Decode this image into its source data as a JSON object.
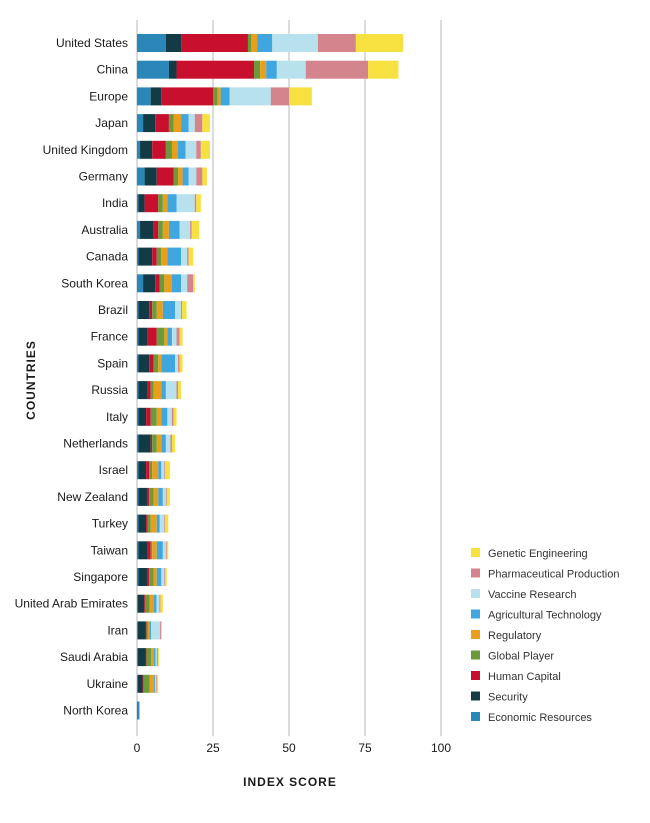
{
  "chart_data": {
    "type": "bar",
    "orientation": "horizontal",
    "stacked": true,
    "title": "",
    "xlabel": "INDEX SCORE",
    "ylabel": "COUNTRIES",
    "xlim": [
      0,
      100
    ],
    "xticks": [
      0,
      25,
      50,
      75,
      100
    ],
    "grid": "vertical",
    "legend": "bottom-right",
    "categories": [
      "United States",
      "China",
      "Europe",
      "Japan",
      "United Kingdom",
      "Germany",
      "India",
      "Australia",
      "Canada",
      "South Korea",
      "Brazil",
      "France",
      "Spain",
      "Russia",
      "Italy",
      "Netherlands",
      "Israel",
      "New Zealand",
      "Turkey",
      "Taiwan",
      "Singapore",
      "United Arab Emirates",
      "Iran",
      "Saudi Arabia",
      "Ukraine",
      "North Korea"
    ],
    "series": [
      {
        "name": "Economic Resources",
        "color": "#2b87b8",
        "values": [
          9.5,
          10.5,
          4.5,
          2.0,
          1.0,
          2.5,
          0.5,
          1.0,
          0.5,
          2.0,
          0.5,
          0.5,
          0.5,
          0.5,
          0.5,
          0.5,
          0.5,
          0.5,
          0.5,
          0.5,
          0.5,
          0.3,
          0.3,
          0.3,
          0.3,
          0.8
        ]
      },
      {
        "name": "Security",
        "color": "#133b45",
        "values": [
          5.0,
          2.5,
          3.5,
          4.0,
          4.0,
          4.0,
          2.0,
          4.5,
          4.5,
          4.0,
          3.5,
          3.0,
          3.5,
          3.0,
          2.5,
          4.0,
          2.5,
          3.0,
          2.5,
          3.0,
          3.0,
          2.0,
          2.5,
          2.5,
          1.5,
          0
        ]
      },
      {
        "name": "Human Capital",
        "color": "#c8102e",
        "values": [
          22.0,
          25.5,
          17.0,
          4.5,
          4.5,
          5.5,
          4.5,
          1.5,
          1.5,
          1.5,
          1.0,
          3.0,
          1.5,
          1.0,
          1.5,
          0.5,
          1.0,
          0.5,
          0.5,
          1.0,
          0.5,
          0.3,
          0.3,
          0.3,
          0.3,
          0
        ]
      },
      {
        "name": "Global Player",
        "color": "#6a9a3a",
        "values": [
          1.0,
          2.0,
          1.5,
          1.5,
          2.0,
          1.5,
          1.5,
          1.5,
          1.5,
          1.5,
          1.5,
          2.5,
          1.5,
          1.0,
          2.0,
          1.5,
          1.0,
          1.5,
          1.0,
          0.5,
          1.5,
          1.5,
          0.5,
          1.5,
          2.0,
          0
        ]
      },
      {
        "name": "Regulatory",
        "color": "#e8a01c",
        "values": [
          2.0,
          2.0,
          1.0,
          2.5,
          2.0,
          1.5,
          1.5,
          2.0,
          2.0,
          2.5,
          2.0,
          1.0,
          1.0,
          2.5,
          1.5,
          1.5,
          2.0,
          1.5,
          2.0,
          1.5,
          1.0,
          1.5,
          0.5,
          1.0,
          1.5,
          0
        ]
      },
      {
        "name": "Agricultural Technology",
        "color": "#3fa6e0",
        "values": [
          5.0,
          3.5,
          3.0,
          2.5,
          2.5,
          2.0,
          3.0,
          3.5,
          4.5,
          3.0,
          4.0,
          1.5,
          4.5,
          1.5,
          2.0,
          1.5,
          1.0,
          1.5,
          1.0,
          2.0,
          1.5,
          0.8,
          0.5,
          0.5,
          0.3,
          0
        ]
      },
      {
        "name": "Vaccine Research",
        "color": "#b8e1ee",
        "values": [
          15.0,
          9.5,
          13.5,
          2.0,
          3.5,
          2.5,
          6.0,
          3.5,
          2.0,
          2.0,
          2.0,
          1.5,
          1.0,
          3.5,
          1.5,
          1.5,
          1.0,
          1.0,
          1.5,
          1.0,
          1.0,
          1.0,
          3.0,
          0.5,
          0.3,
          0
        ]
      },
      {
        "name": "Pharmaceutical Production",
        "color": "#d4848c",
        "values": [
          12.5,
          20.5,
          6.0,
          2.5,
          1.5,
          2.0,
          0.5,
          0.5,
          0.5,
          2.0,
          0.3,
          1.0,
          0.5,
          0.5,
          0.5,
          0.5,
          0.3,
          0.3,
          0.3,
          0.3,
          0.3,
          0.3,
          0.3,
          0.3,
          0.3,
          0
        ]
      },
      {
        "name": "Genetic Engineering",
        "color": "#f6e141",
        "values": [
          15.5,
          10.0,
          7.5,
          2.5,
          3.0,
          1.5,
          1.5,
          2.5,
          1.5,
          0.5,
          1.5,
          1.0,
          1.0,
          1.0,
          1.0,
          1.0,
          1.5,
          1.0,
          1.0,
          0.5,
          0.5,
          0.8,
          0.3,
          0.3,
          0.5,
          0
        ]
      }
    ],
    "legend_order": [
      "Genetic Engineering",
      "Pharmaceutical Production",
      "Vaccine Research",
      "Agricultural Technology",
      "Regulatory",
      "Global Player",
      "Human Capital",
      "Security",
      "Economic Resources"
    ]
  }
}
